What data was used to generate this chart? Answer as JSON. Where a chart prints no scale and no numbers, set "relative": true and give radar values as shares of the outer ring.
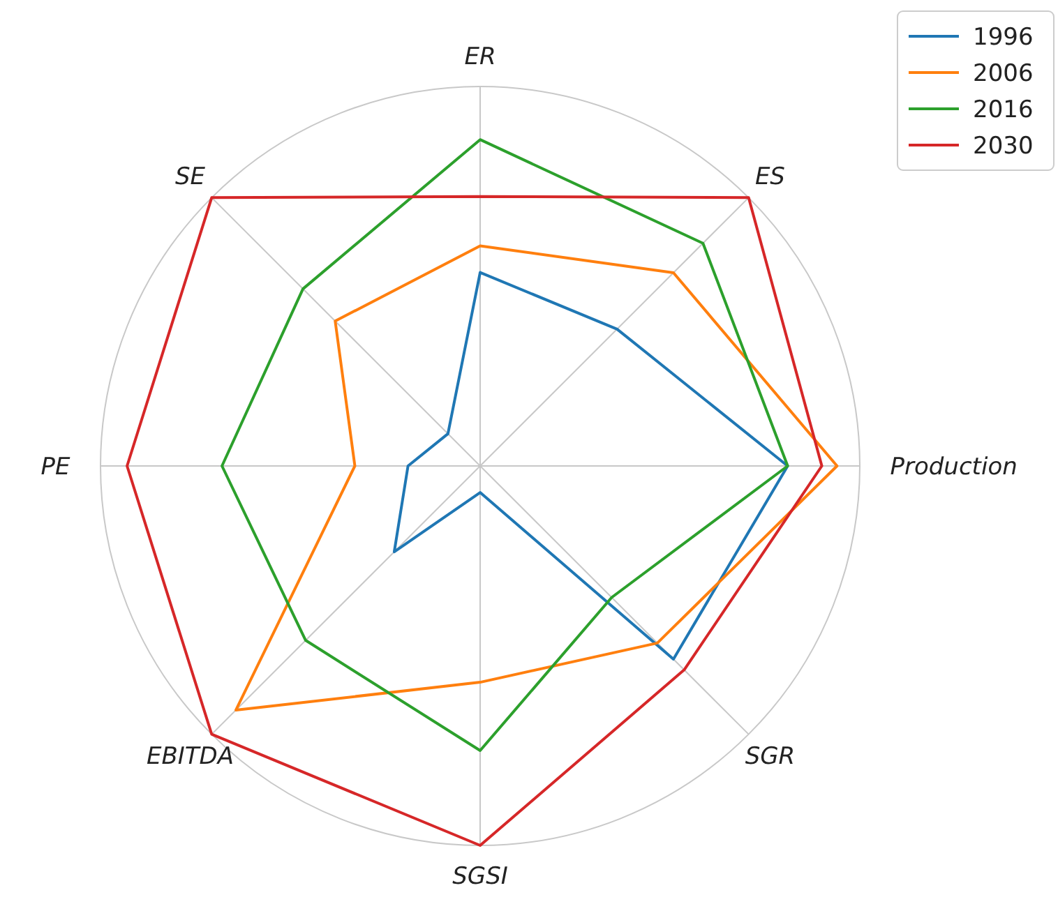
{
  "chart_data": {
    "type": "radar",
    "relative": true,
    "grid": true,
    "legend": "top right",
    "categories": [
      "ER",
      "ES",
      "Production",
      "SGR",
      "SGSI",
      "EBITDA",
      "PE",
      "SE"
    ],
    "series": [
      {
        "name": "1996",
        "color": "#1f77b4",
        "values": [
          0.51,
          0.51,
          0.81,
          0.72,
          0.07,
          0.32,
          0.19,
          0.12
        ]
      },
      {
        "name": "2006",
        "color": "#ff7f0e",
        "values": [
          0.58,
          0.72,
          0.94,
          0.66,
          0.57,
          0.91,
          0.33,
          0.54
        ]
      },
      {
        "name": "2016",
        "color": "#2ca02c",
        "values": [
          0.86,
          0.83,
          0.81,
          0.49,
          0.75,
          0.65,
          0.68,
          0.66
        ]
      },
      {
        "name": "2030",
        "color": "#d62728",
        "values": [
          0.71,
          1.0,
          0.9,
          0.76,
          1.0,
          1.0,
          0.93,
          1.0
        ]
      }
    ]
  }
}
